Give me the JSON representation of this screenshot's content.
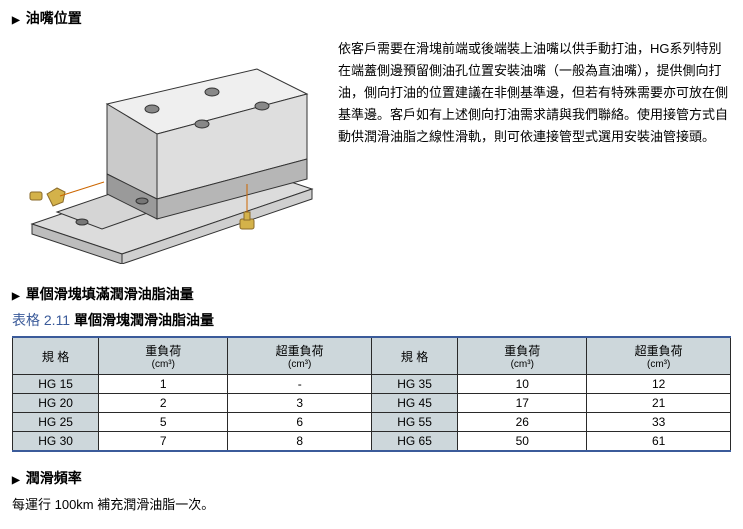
{
  "section1": {
    "title": "油嘴位置",
    "description": "依客戶需要在滑塊前端或後端裝上油嘴以供手動打油，HG系列特別在端蓋側邊預留側油孔位置安裝油嘴（一般為直油嘴），提供側向打油，側向打油的位置建議在非側基準邊，但若有特殊需要亦可放在側基準邊。客戶如有上述側向打油需求請與我們聯絡。使用接管方式自動供潤滑油脂之線性滑軌，則可依連接管型式選用安裝油管接頭。"
  },
  "section2": {
    "title": "單個滑塊填滿潤滑油脂油量"
  },
  "table": {
    "caption_num": "表格 2.11",
    "caption_txt": "單個滑塊潤滑油脂油量",
    "columns_left": {
      "spec": "規 格",
      "heavy": "重負荷",
      "heavy_unit": "(cm³)",
      "super": "超重負荷",
      "super_unit": "(cm³)"
    },
    "columns_right": {
      "spec": "規 格",
      "heavy": "重負荷",
      "heavy_unit": "(cm³)",
      "super": "超重負荷",
      "super_unit": "(cm³)"
    },
    "rows": [
      {
        "l_spec": "HG 15",
        "l_h": "1",
        "l_s": "-",
        "r_spec": "HG 35",
        "r_h": "10",
        "r_s": "12"
      },
      {
        "l_spec": "HG 20",
        "l_h": "2",
        "l_s": "3",
        "r_spec": "HG 45",
        "r_h": "17",
        "r_s": "21"
      },
      {
        "l_spec": "HG 25",
        "l_h": "5",
        "l_s": "6",
        "r_spec": "HG 55",
        "r_h": "26",
        "r_s": "33"
      },
      {
        "l_spec": "HG 30",
        "l_h": "7",
        "l_s": "8",
        "r_spec": "HG 65",
        "r_h": "50",
        "r_s": "61"
      }
    ]
  },
  "section3": {
    "title": "潤滑頻率",
    "note": "每運行 100km 補充潤滑油脂一次。"
  },
  "colors": {
    "header_bg": "#cdd7db",
    "border": "#2a2a2a",
    "accent": "#3b5b9a"
  }
}
